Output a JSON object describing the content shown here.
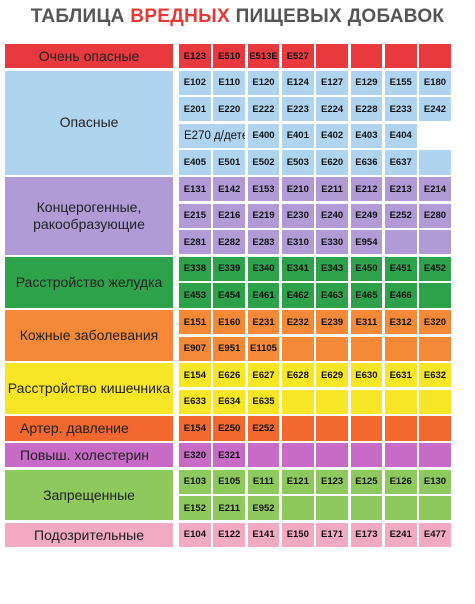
{
  "title": {
    "prefix": "ТАБЛИЦА ",
    "accent": "ВРЕДНЫХ",
    "suffix": " ПИЩЕВЫХ ДОБАВОК"
  },
  "colors": {
    "very_dangerous": "#e83a3e",
    "dangerous": "#aed4f0",
    "carcinogenic": "#b09bd7",
    "stomach": "#2ea24a",
    "skin": "#f48a37",
    "intestine": "#f7e626",
    "pressure": "#f2682f",
    "cholesterol": "#c76bc6",
    "forbidden": "#8dc95c",
    "suspicious": "#f2a9c2",
    "title_accent": "#e53935",
    "title_text": "#555555"
  },
  "categories": [
    {
      "label": "Очень опасные",
      "color": "very_dangerous",
      "rows": [
        [
          "E123",
          "E510",
          "E513E",
          "E527",
          "",
          "",
          "",
          ""
        ]
      ]
    },
    {
      "label": "Опасные",
      "color": "dangerous",
      "rows": [
        [
          "E102",
          "E110",
          "E120",
          "E124",
          "E127",
          "E129",
          "E155",
          "E180"
        ],
        [
          "E201",
          "E220",
          "E222",
          "E223",
          "E224",
          "E228",
          "E233",
          "E242"
        ],
        [
          "E270",
          "д/детей",
          "E400",
          "E401",
          "E402",
          "E403",
          "E404"
        ],
        [
          "E405",
          "E501",
          "E502",
          "E503",
          "E620",
          "E636",
          "E637",
          ""
        ]
      ]
    },
    {
      "label": "Концерогенные, ракообразующие",
      "color": "carcinogenic",
      "rows": [
        [
          "E131",
          "E142",
          "E153",
          "E210",
          "E211",
          "E212",
          "E213",
          "E214"
        ],
        [
          "E215",
          "E216",
          "E219",
          "E230",
          "E240",
          "E249",
          "E252",
          "E280"
        ],
        [
          "E281",
          "E282",
          "E283",
          "E310",
          "E330",
          "E954",
          "",
          ""
        ]
      ]
    },
    {
      "label": "Расстройство желудка",
      "color": "stomach",
      "rows": [
        [
          "E338",
          "E339",
          "E340",
          "E341",
          "E343",
          "E450",
          "E451",
          "E452"
        ],
        [
          "E453",
          "E454",
          "E461",
          "E462",
          "E463",
          "E465",
          "E466",
          ""
        ]
      ]
    },
    {
      "label": "Кожные заболевания",
      "color": "skin",
      "rows": [
        [
          "E151",
          "E160",
          "E231",
          "E232",
          "E239",
          "E311",
          "E312",
          "E320"
        ],
        [
          "E907",
          "E951",
          "E1105",
          "",
          "",
          "",
          "",
          ""
        ]
      ]
    },
    {
      "label": "Расстройство кишечника",
      "color": "intestine",
      "rows": [
        [
          "E154",
          "E626",
          "E627",
          "E628",
          "E629",
          "E630",
          "E631",
          "E632"
        ],
        [
          "E633",
          "E634",
          "E635",
          "",
          "",
          "",
          "",
          ""
        ]
      ]
    },
    {
      "label": "Артер. давление",
      "color": "pressure",
      "rows": [
        [
          "E154",
          "E250",
          "E252",
          "",
          "",
          "",
          "",
          ""
        ]
      ]
    },
    {
      "label": "Повыш. холестерин",
      "color": "cholesterol",
      "rows": [
        [
          "E320",
          "E321",
          "",
          "",
          "",
          "",
          "",
          ""
        ]
      ]
    },
    {
      "label": "Запрещенные",
      "color": "forbidden",
      "rows": [
        [
          "E103",
          "E105",
          "E111",
          "E121",
          "E123",
          "E125",
          "E126",
          "E130"
        ],
        [
          "E152",
          "E211",
          "E952",
          "",
          "",
          "",
          "",
          ""
        ]
      ]
    },
    {
      "label": "Подозрительные",
      "color": "suspicious",
      "rows": [
        [
          "E104",
          "E122",
          "E141",
          "E150",
          "E171",
          "E173",
          "E241",
          "E477"
        ]
      ]
    }
  ]
}
